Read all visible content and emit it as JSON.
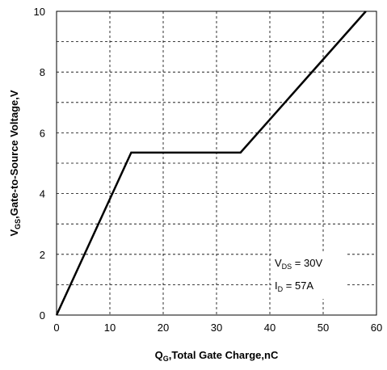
{
  "chart_data": {
    "type": "line",
    "xlabel": {
      "prefix": "Q",
      "sub": "G",
      "rest": ",Total Gate Charge,nC"
    },
    "ylabel": {
      "prefix": "V",
      "sub": "GS",
      "rest": ",Gate-to-Source Voltage,V"
    },
    "xlim": [
      0,
      60
    ],
    "ylim": [
      0,
      10
    ],
    "x_ticks": [
      "0",
      "10",
      "20",
      "30",
      "40",
      "50",
      "60"
    ],
    "y_ticks": [
      "0",
      "2",
      "4",
      "6",
      "8",
      "10"
    ],
    "grid": true,
    "grid_style": "dashed minor lines every 1 V and every 10 nC",
    "series": [
      {
        "x": [
          0,
          14,
          34.5,
          58
        ],
        "y": [
          0,
          5.35,
          5.35,
          10
        ],
        "color": "#000000"
      }
    ],
    "annotations": [
      {
        "prefix": "V",
        "sub": "DS",
        "rest": " = 30V"
      },
      {
        "prefix": "I",
        "sub": "D",
        "rest": " = 57A"
      }
    ]
  }
}
